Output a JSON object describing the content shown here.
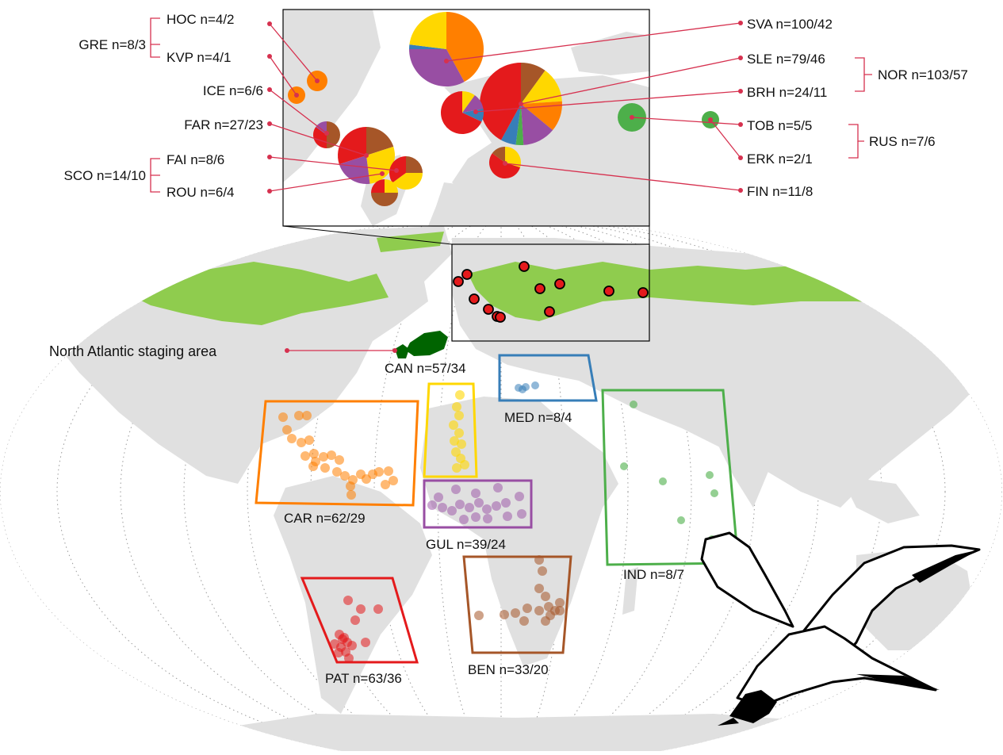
{
  "inset": {
    "colonies": [
      {
        "id": "sva",
        "label": "SVA n=100/42",
        "slices": [
          {
            "color": "#ff7f00",
            "value": 0.42
          },
          {
            "color": "#984ea3",
            "value": 0.33
          },
          {
            "color": "#377eb8",
            "value": 0.02
          },
          {
            "color": "#ffd700",
            "value": 0.23
          }
        ]
      },
      {
        "id": "sle",
        "label": "SLE n=79/46",
        "slices": [
          {
            "color": "#a65628",
            "value": 0.1
          },
          {
            "color": "#ffd700",
            "value": 0.14
          },
          {
            "color": "#ff7f00",
            "value": 0.12
          },
          {
            "color": "#984ea3",
            "value": 0.13
          },
          {
            "color": "#4daf4a",
            "value": 0.03
          },
          {
            "color": "#377eb8",
            "value": 0.06
          },
          {
            "color": "#e41a1c",
            "value": 0.42
          }
        ]
      },
      {
        "id": "brh",
        "label": "BRH n=24/11",
        "slices": [
          {
            "color": "#ffd700",
            "value": 0.1
          },
          {
            "color": "#984ea3",
            "value": 0.12
          },
          {
            "color": "#377eb8",
            "value": 0.1
          },
          {
            "color": "#e41a1c",
            "value": 0.68
          }
        ]
      },
      {
        "id": "tob",
        "label": "TOB n=5/5",
        "slices": [
          {
            "color": "#4daf4a",
            "value": 1
          }
        ]
      },
      {
        "id": "erk",
        "label": "ERK n=2/1",
        "slices": [
          {
            "color": "#4daf4a",
            "value": 1
          }
        ]
      },
      {
        "id": "fin",
        "label": "FIN n=11/8",
        "slices": [
          {
            "color": "#ffd700",
            "value": 0.3
          },
          {
            "color": "#e41a1c",
            "value": 0.55
          },
          {
            "color": "#a65628",
            "value": 0.15
          }
        ]
      },
      {
        "id": "hoc",
        "label": "HOC n=4/2",
        "slices": [
          {
            "color": "#ff7f00",
            "value": 1
          }
        ]
      },
      {
        "id": "kvp",
        "label": "KVP n=4/1",
        "slices": [
          {
            "color": "#ff7f00",
            "value": 1
          }
        ]
      },
      {
        "id": "ice",
        "label": "ICE n=6/6",
        "slices": [
          {
            "color": "#a65628",
            "value": 0.5
          },
          {
            "color": "#e41a1c",
            "value": 0.35
          },
          {
            "color": "#984ea3",
            "value": 0.15
          }
        ]
      },
      {
        "id": "far",
        "label": "FAR n=27/23",
        "slices": [
          {
            "color": "#a65628",
            "value": 0.2
          },
          {
            "color": "#ffd700",
            "value": 0.28
          },
          {
            "color": "#984ea3",
            "value": 0.22
          },
          {
            "color": "#e41a1c",
            "value": 0.3
          }
        ]
      },
      {
        "id": "fai",
        "label": "FAI n=8/6",
        "slices": [
          {
            "color": "#a65628",
            "value": 0.25
          },
          {
            "color": "#ffd700",
            "value": 0.4
          },
          {
            "color": "#e41a1c",
            "value": 0.35
          }
        ]
      },
      {
        "id": "rou",
        "label": "ROU n=6/4",
        "slices": [
          {
            "color": "#ffd700",
            "value": 0.25
          },
          {
            "color": "#a65628",
            "value": 0.5
          },
          {
            "color": "#e41a1c",
            "value": 0.25
          }
        ]
      }
    ],
    "groups": [
      {
        "id": "gre",
        "label": "GRE n=8/3"
      },
      {
        "id": "sco",
        "label": "SCO n=14/10"
      },
      {
        "id": "nor",
        "label": "NOR n=103/57"
      },
      {
        "id": "rus",
        "label": "RUS n=7/6"
      }
    ]
  },
  "regions": [
    {
      "id": "car",
      "label": "CAR n=62/29",
      "color": "#ff7f00"
    },
    {
      "id": "gul",
      "label": "GUL n=39/24",
      "color": "#984ea3"
    },
    {
      "id": "can",
      "label": "CAN n=57/34",
      "color": "#ffd700"
    },
    {
      "id": "med",
      "label": "MED n=8/4",
      "color": "#377eb8"
    },
    {
      "id": "ind",
      "label": "IND n=8/7",
      "color": "#4daf4a"
    },
    {
      "id": "ben",
      "label": "BEN n=33/20",
      "color": "#a65628"
    },
    {
      "id": "pat",
      "label": "PAT n=63/36",
      "color": "#e41a1c"
    }
  ],
  "staging_area": {
    "label": "North Atlantic staging area",
    "color": "#006400"
  },
  "colors": {
    "land": "#e0e0e0",
    "breeding_range": "#8fcc4e",
    "leader": "#d6314f",
    "colony_marker": "#e41a1c"
  },
  "icons": [
    "bird-silhouette-icon"
  ]
}
